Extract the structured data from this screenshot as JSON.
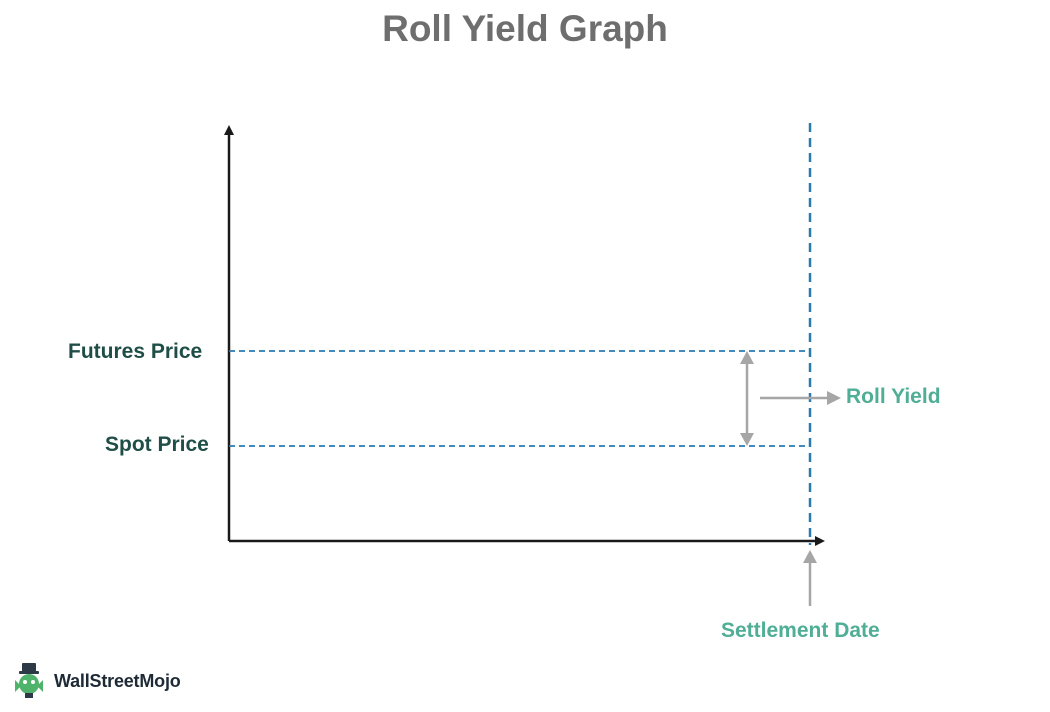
{
  "title": "Roll Yield Graph",
  "labels": {
    "futures_price": "Futures Price",
    "spot_price": "Spot Price",
    "roll_yield": "Roll Yield",
    "settlement_date": "Settlement Date"
  },
  "brand": {
    "name": "WallStreetMojo"
  },
  "colors": {
    "axis": "#1a1a1a",
    "dashed_line": "#2a7ab0",
    "arrow_gray": "#a6a6a6",
    "label_dark": "#1f4e47",
    "label_accent": "#4fae95",
    "title": "#6e6e6e"
  }
}
